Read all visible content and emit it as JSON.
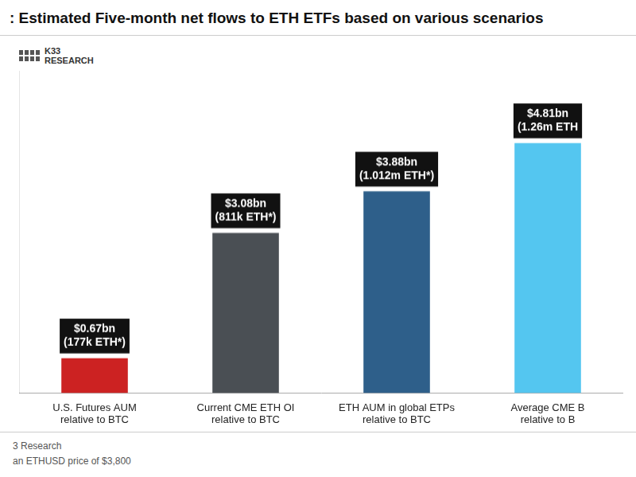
{
  "chart_data": {
    "type": "bar",
    "title": ": Estimated Five-month net flows to ETH ETFs based on various scenarios",
    "categories": [
      "U.S. Futures AUM\nrelative to BTC",
      "Current CME ETH OI\nrelative to BTC",
      "ETH AUM in global ETPs\nrelative to BTC",
      "Average CME B\nrelative to B"
    ],
    "values": [
      0.67,
      3.08,
      3.88,
      4.81
    ],
    "value_labels": [
      "$0.67bn\n(177k ETH*)",
      "$3.08bn\n(811k ETH*)",
      "$3.88bn\n(1.012m ETH*)",
      "$4.81bn\n(1.26m ETH"
    ],
    "data_labels": true,
    "colors": [
      "#cc2222",
      "#4a4f54",
      "#2e5f8a",
      "#54c6f0"
    ],
    "ylim": [
      0,
      6.2
    ],
    "grid": false,
    "tick_labels": "x",
    "annotations": [
      "K33\nRESEARCH",
      "3 Research",
      "an ETHUSD price of $3,800"
    ]
  }
}
